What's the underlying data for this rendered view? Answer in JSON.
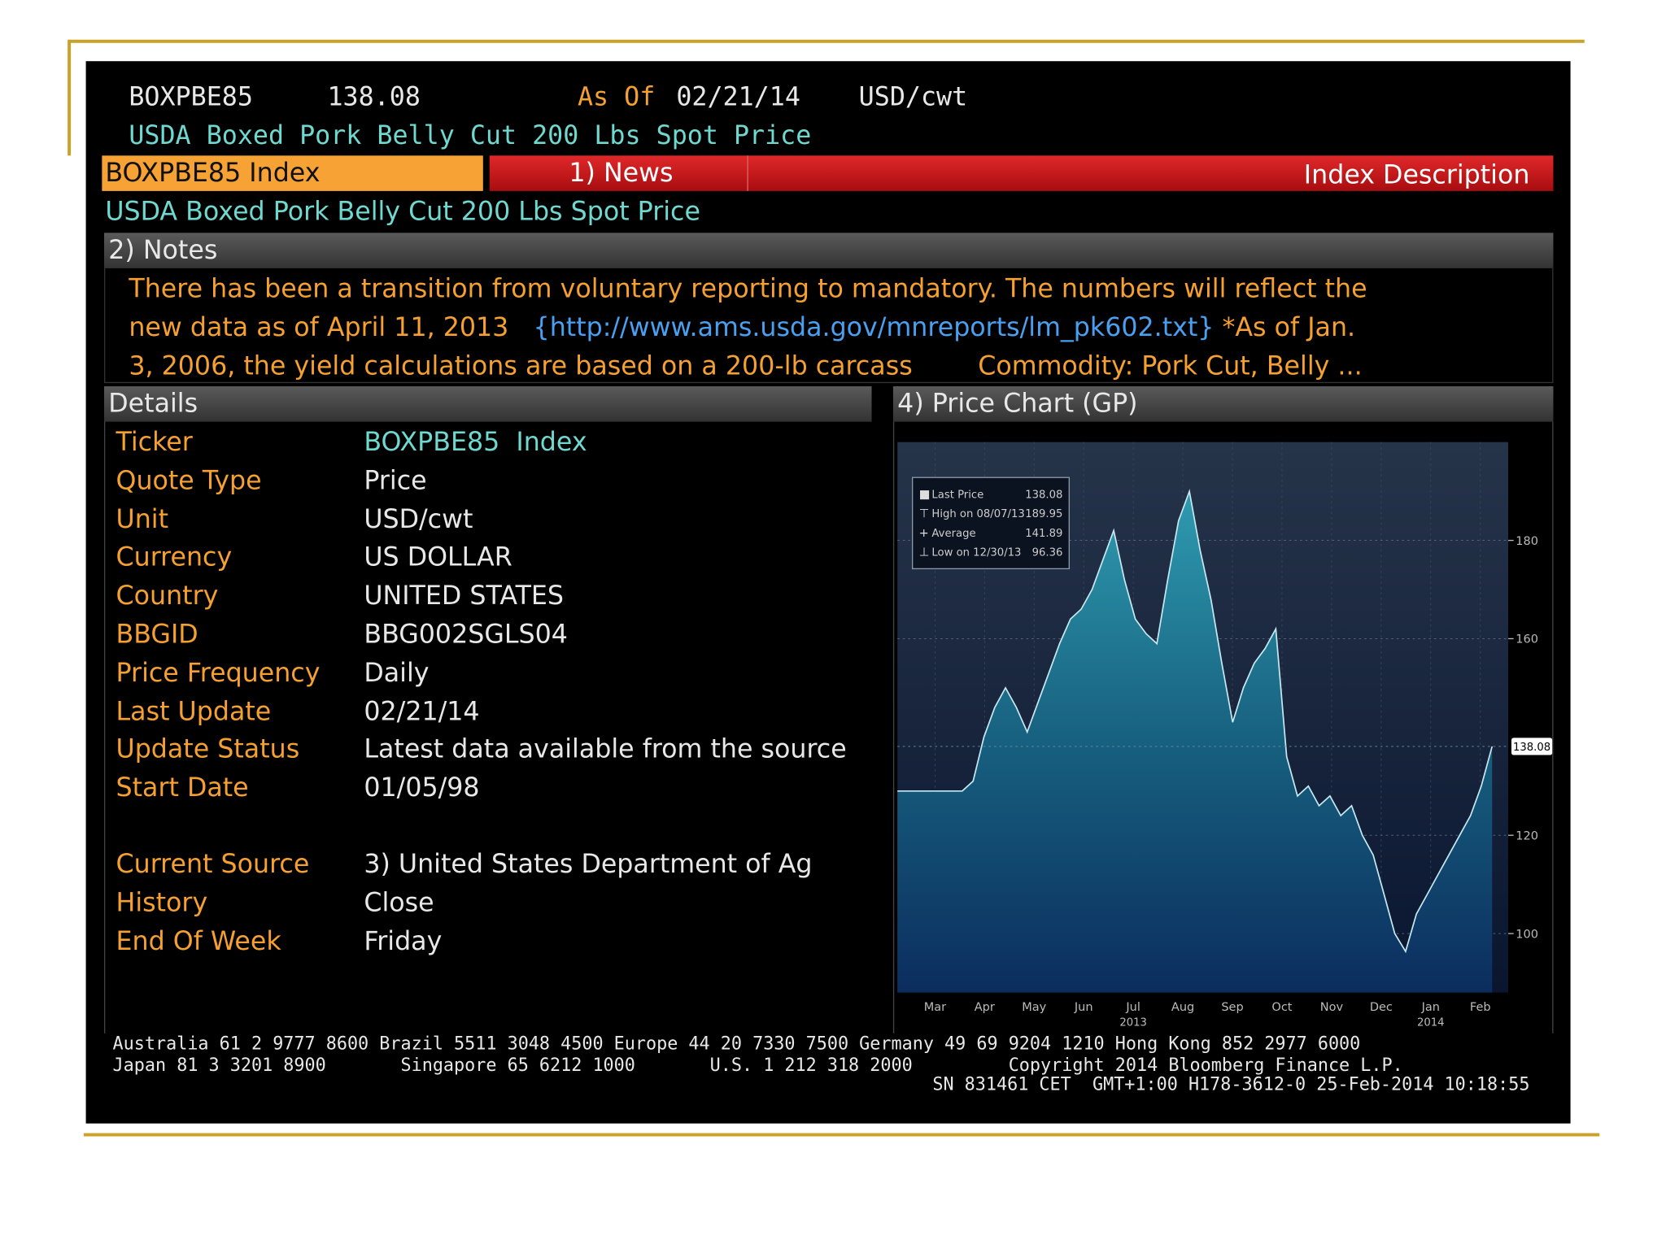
{
  "header": {
    "ticker": "BOXPBE85",
    "price": "138.08",
    "as_of_label": "As Of",
    "as_of": "02/21/14",
    "unit": "USD/cwt",
    "name": "USDA Boxed Pork Belly Cut 200 Lbs Spot Price"
  },
  "tabs": {
    "security": "BOXPBE85 Index",
    "news": "1) News",
    "description": "Index Description"
  },
  "subtitle": "USDA Boxed Pork Belly Cut 200 Lbs Spot Price",
  "notes": {
    "title": "2) Notes",
    "line1": "There has been a transition from voluntary reporting to mandatory. The numbers will reflect the",
    "line2_start": "new data as of April 11, 2013   ",
    "url": "{http://www.ams.usda.gov/mnreports/lm_pk602.txt}",
    "line2_end": " *As of Jan.",
    "line3": "3, 2006, the yield calculations are based on a 200-lb carcass        Commodity: Pork Cut, Belly ..."
  },
  "details": {
    "title": "Details",
    "rows": [
      [
        "Ticker",
        "BOXPBE85  Index"
      ],
      [
        "Quote Type",
        "Price"
      ],
      [
        "Unit",
        "USD/cwt"
      ],
      [
        "Currency",
        "US DOLLAR"
      ],
      [
        "Country",
        "UNITED STATES"
      ],
      [
        "BBGID",
        "BBG002SGLS04"
      ],
      [
        "Price Frequency",
        "Daily"
      ],
      [
        "Last Update",
        "02/21/14"
      ],
      [
        "Update Status",
        "Latest data available from the source"
      ],
      [
        "Start Date",
        "01/05/98"
      ]
    ],
    "rows2": [
      [
        "Current Source",
        "3) United States Department of Ag"
      ],
      [
        "History",
        "Close"
      ],
      [
        "End Of Week",
        "Friday"
      ]
    ]
  },
  "price_chart": {
    "type": "area",
    "title": "4) Price Chart (GP)",
    "values": [
      129,
      129,
      129,
      129,
      129,
      129,
      129,
      131,
      140,
      146,
      150,
      146,
      141,
      147,
      153,
      159,
      164,
      166,
      170,
      176,
      182,
      172,
      164,
      161,
      159,
      172,
      184,
      189.95,
      178,
      168,
      155,
      143,
      150,
      155,
      158,
      162,
      136,
      128,
      130,
      126,
      128,
      124,
      126,
      120,
      116,
      108,
      100,
      96.36,
      104,
      108,
      112,
      116,
      120,
      124,
      130,
      138.08
    ],
    "ylim": [
      88,
      200
    ],
    "yticks": [
      100,
      120,
      160,
      180
    ],
    "x_labels": [
      "Mar",
      "Apr",
      "May",
      "Jun",
      "Jul",
      "Aug",
      "Sep",
      "Oct",
      "Nov",
      "Dec",
      "Jan",
      "Feb"
    ],
    "x_year_labels": [
      "2013",
      "2014"
    ],
    "last_price_label": "138.08",
    "legend": [
      [
        "Last Price",
        "138.08"
      ],
      [
        "High on 08/07/13",
        "189.95"
      ],
      [
        "Average",
        "141.89"
      ],
      [
        "Low on 12/30/13",
        "96.36"
      ]
    ]
  },
  "footer": {
    "line1": "Australia 61 2 9777 8600 Brazil 5511 3048 4500 Europe 44 20 7330 7500 Germany 49 69 9204 1210 Hong Kong 852 2977 6000",
    "line2": "Japan 81 3 3201 8900       Singapore 65 6212 1000       U.S. 1 212 318 2000         Copyright 2014 Bloomberg Finance L.P.",
    "line3": "SN 831461 CET  GMT+1:00 H178-3612-0 25-Feb-2014 10:18:55"
  }
}
